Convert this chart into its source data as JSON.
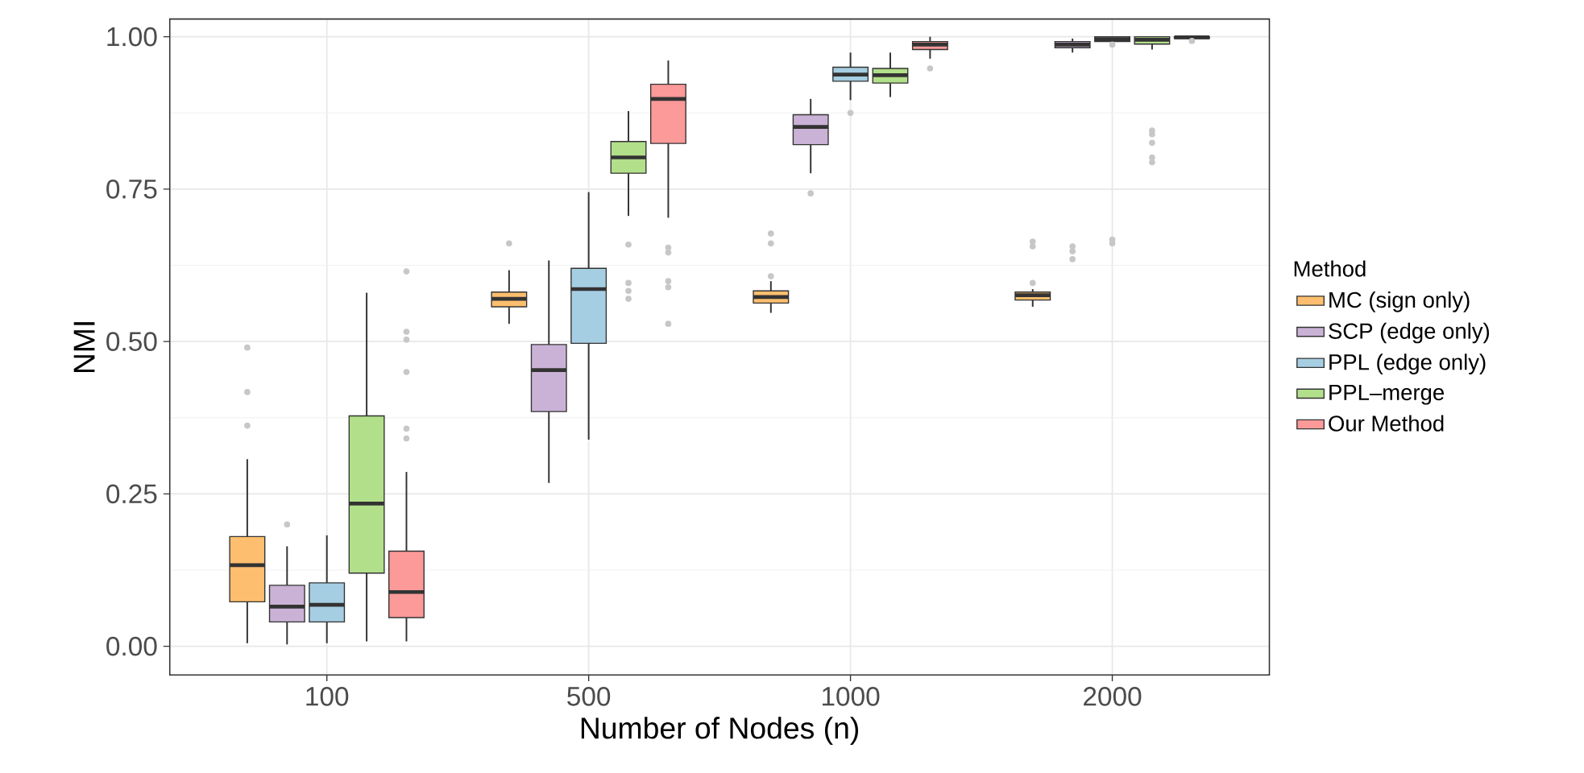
{
  "chart_data": {
    "type": "box",
    "xlabel": "Number of Nodes (n)",
    "ylabel": "NMI",
    "legend_title": "Method",
    "legend": "right",
    "grid": true,
    "categories": [
      "100",
      "500",
      "1000",
      "2000"
    ],
    "ylim": [
      -0.047,
      1.029
    ],
    "yticks": [
      {
        "value": 0,
        "label": "0.00"
      },
      {
        "value": 0.25,
        "label": "0.25"
      },
      {
        "value": 0.5,
        "label": "0.50"
      },
      {
        "value": 0.75,
        "label": "0.75"
      },
      {
        "value": 1,
        "label": "1.00"
      }
    ],
    "series": [
      {
        "name": "MC (sign only)",
        "color": "#fdbf6f",
        "boxes": [
          {
            "low": 0.005,
            "q1": 0.073,
            "median": 0.133,
            "q3": 0.18,
            "high": 0.307,
            "outliers": [
              0.49,
              0.417,
              0.362
            ]
          },
          {
            "low": 0.529,
            "q1": 0.557,
            "median": 0.57,
            "q3": 0.581,
            "high": 0.617,
            "outliers": [
              0.661
            ]
          },
          {
            "low": 0.547,
            "q1": 0.563,
            "median": 0.573,
            "q3": 0.583,
            "high": 0.599,
            "outliers": [
              0.677,
              0.661,
              0.607
            ]
          },
          {
            "low": 0.557,
            "q1": 0.568,
            "median": 0.576,
            "q3": 0.581,
            "high": 0.586,
            "outliers": [
              0.664,
              0.656,
              0.596
            ]
          }
        ]
      },
      {
        "name": "SCP (edge only)",
        "color": "#cab2d6",
        "boxes": [
          {
            "low": 0.003,
            "q1": 0.04,
            "median": 0.065,
            "q3": 0.1,
            "high": 0.164,
            "outliers": [
              0.2
            ]
          },
          {
            "low": 0.268,
            "q1": 0.385,
            "median": 0.453,
            "q3": 0.495,
            "high": 0.633
          },
          {
            "low": 0.776,
            "q1": 0.823,
            "median": 0.852,
            "q3": 0.872,
            "high": 0.898,
            "outliers": [
              0.743
            ]
          },
          {
            "low": 0.974,
            "q1": 0.982,
            "median": 0.987,
            "q3": 0.992,
            "high": 0.997,
            "outliers": [
              0.656,
              0.648,
              0.635
            ]
          }
        ]
      },
      {
        "name": "PPL (edge only)",
        "color": "#a6cee3",
        "boxes": [
          {
            "low": 0.005,
            "q1": 0.04,
            "median": 0.068,
            "q3": 0.104,
            "high": 0.182
          },
          {
            "low": 0.339,
            "q1": 0.497,
            "median": 0.586,
            "q3": 0.62,
            "high": 0.745
          },
          {
            "low": 0.896,
            "q1": 0.927,
            "median": 0.938,
            "q3": 0.95,
            "high": 0.974,
            "outliers": [
              0.875
            ]
          },
          {
            "low": 0.99,
            "q1": 0.992,
            "median": 0.996,
            "q3": 1.0,
            "high": 1.0,
            "outliers": [
              0.987,
              0.667,
              0.661
            ]
          }
        ]
      },
      {
        "name": "PPL–merge",
        "color": "#b2df8a",
        "boxes": [
          {
            "low": 0.008,
            "q1": 0.12,
            "median": 0.234,
            "q3": 0.378,
            "high": 0.58
          },
          {
            "low": 0.706,
            "q1": 0.776,
            "median": 0.802,
            "q3": 0.828,
            "high": 0.878,
            "outliers": [
              0.659,
              0.596,
              0.583,
              0.57
            ]
          },
          {
            "low": 0.901,
            "q1": 0.924,
            "median": 0.937,
            "q3": 0.948,
            "high": 0.974
          },
          {
            "low": 0.979,
            "q1": 0.988,
            "median": 0.995,
            "q3": 1.0,
            "high": 1.0,
            "outliers": [
              0.846,
              0.84,
              0.826,
              0.802,
              0.794
            ]
          }
        ]
      },
      {
        "name": "Our Method",
        "color": "#fb9a99",
        "boxes": [
          {
            "low": 0.008,
            "q1": 0.047,
            "median": 0.089,
            "q3": 0.156,
            "high": 0.286,
            "outliers": [
              0.615,
              0.516,
              0.503,
              0.45,
              0.357,
              0.341
            ]
          },
          {
            "low": 0.703,
            "q1": 0.825,
            "median": 0.898,
            "q3": 0.922,
            "high": 0.961,
            "outliers": [
              0.654,
              0.646,
              0.599,
              0.589,
              0.529
            ]
          },
          {
            "low": 0.964,
            "q1": 0.979,
            "median": 0.987,
            "q3": 0.992,
            "high": 1.0,
            "outliers": [
              0.948
            ]
          },
          {
            "low": 0.996,
            "q1": 0.997,
            "median": 0.999,
            "q3": 1.0,
            "high": 1.0,
            "outliers": [
              0.993
            ]
          }
        ]
      }
    ]
  }
}
